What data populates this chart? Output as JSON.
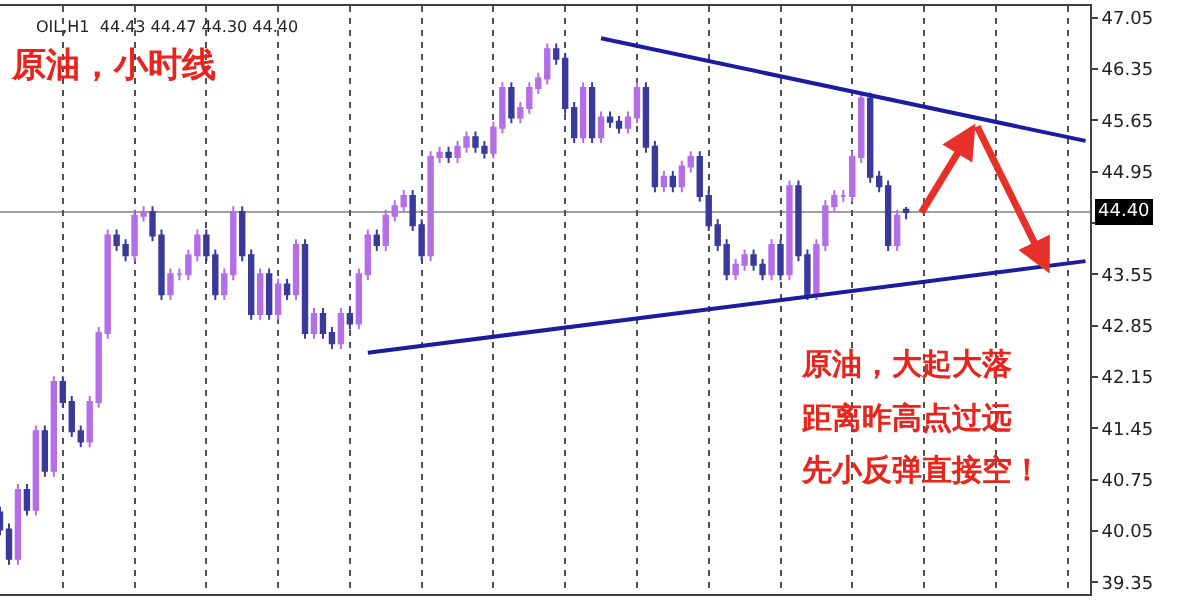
{
  "chart_data": {
    "type": "candlestick",
    "title": "原油，小时线",
    "annotations": [
      "OIL,H1  44.43 44.47 44.30 44.40",
      "原油，大起大落",
      "距离昨高点过远",
      "先小反弹直接空！"
    ],
    "categories": [
      null,
      null,
      null,
      null,
      null,
      null,
      null,
      null,
      null,
      null,
      null,
      null,
      null,
      null,
      null,
      null,
      null,
      null,
      null,
      null,
      null,
      null,
      null,
      null,
      null,
      null,
      null,
      null,
      null,
      null,
      null,
      null,
      null,
      null,
      null,
      null,
      null,
      null,
      null,
      null,
      null,
      null,
      null,
      null,
      null,
      null,
      null,
      null,
      null,
      null,
      null,
      null,
      null,
      null,
      null,
      null,
      null,
      null,
      null,
      null,
      null,
      null,
      null,
      null,
      null,
      null,
      null,
      null,
      null,
      null,
      null,
      null,
      null,
      null,
      null,
      null,
      null,
      null,
      null,
      null,
      null,
      null,
      null,
      null,
      null,
      null,
      null,
      null,
      null,
      null,
      null,
      null,
      null,
      null,
      null,
      null,
      null,
      null,
      null,
      null,
      null,
      null,
      null,
      null,
      null,
      null,
      null,
      null,
      null,
      null,
      null,
      null,
      null,
      null,
      null,
      null,
      null,
      null,
      null,
      null,
      null,
      null
    ],
    "series": [
      {
        "ohlc": [
          [
            40.3,
            40.38,
            39.99,
            40.07
          ],
          [
            40.07,
            40.15,
            39.59,
            39.67
          ],
          [
            39.67,
            40.69,
            39.59,
            40.61
          ],
          [
            40.61,
            40.69,
            40.26,
            40.34
          ],
          [
            40.34,
            41.49,
            40.26,
            41.41
          ],
          [
            41.41,
            41.49,
            40.79,
            40.87
          ],
          [
            40.87,
            42.16,
            40.79,
            42.08
          ],
          [
            42.08,
            42.16,
            41.73,
            41.81
          ],
          [
            41.81,
            41.89,
            41.33,
            41.41
          ],
          [
            41.41,
            41.49,
            41.19,
            41.27
          ],
          [
            41.27,
            41.89,
            41.19,
            41.81
          ],
          [
            41.81,
            42.83,
            41.73,
            42.75
          ],
          [
            42.75,
            44.16,
            42.67,
            44.08
          ],
          [
            44.08,
            44.16,
            43.87,
            43.95
          ],
          [
            43.95,
            44.03,
            43.73,
            43.81
          ],
          [
            43.81,
            44.43,
            43.73,
            44.35
          ],
          [
            44.35,
            44.48,
            44.27,
            44.4
          ],
          [
            44.4,
            44.48,
            44.0,
            44.08
          ],
          [
            44.08,
            44.16,
            43.2,
            43.28
          ],
          [
            43.28,
            43.63,
            43.2,
            43.55
          ],
          [
            43.55,
            43.63,
            43.47,
            43.55
          ],
          [
            43.55,
            43.89,
            43.47,
            43.81
          ],
          [
            43.81,
            44.16,
            43.73,
            44.08
          ],
          [
            44.08,
            44.16,
            43.73,
            43.81
          ],
          [
            43.81,
            43.89,
            43.2,
            43.28
          ],
          [
            43.28,
            43.63,
            43.2,
            43.55
          ],
          [
            43.55,
            44.48,
            43.47,
            44.4
          ],
          [
            44.4,
            44.48,
            43.73,
            43.81
          ],
          [
            43.81,
            43.89,
            42.93,
            43.01
          ],
          [
            43.01,
            43.63,
            42.93,
            43.55
          ],
          [
            43.55,
            43.63,
            42.93,
            43.01
          ],
          [
            43.01,
            43.49,
            42.93,
            43.41
          ],
          [
            43.41,
            43.49,
            43.2,
            43.28
          ],
          [
            43.28,
            44.03,
            43.2,
            43.95
          ],
          [
            43.95,
            44.03,
            42.67,
            42.75
          ],
          [
            42.75,
            43.09,
            42.67,
            43.01
          ],
          [
            43.01,
            43.09,
            42.67,
            42.75
          ],
          [
            42.75,
            42.83,
            42.53,
            42.61
          ],
          [
            42.61,
            43.09,
            42.53,
            43.01
          ],
          [
            43.01,
            43.09,
            42.8,
            42.88
          ],
          [
            42.88,
            43.63,
            42.8,
            43.55
          ],
          [
            43.55,
            44.16,
            43.47,
            44.08
          ],
          [
            44.08,
            44.16,
            43.87,
            43.95
          ],
          [
            43.95,
            44.43,
            43.87,
            44.35
          ],
          [
            44.35,
            44.56,
            44.27,
            44.48
          ],
          [
            44.48,
            44.7,
            44.4,
            44.62
          ],
          [
            44.62,
            44.7,
            44.14,
            44.22
          ],
          [
            44.22,
            44.3,
            43.73,
            43.81
          ],
          [
            43.81,
            45.23,
            43.73,
            45.15
          ],
          [
            45.15,
            45.29,
            45.07,
            45.21
          ],
          [
            45.21,
            45.29,
            45.07,
            45.15
          ],
          [
            45.15,
            45.37,
            45.07,
            45.29
          ],
          [
            45.29,
            45.5,
            45.21,
            45.42
          ],
          [
            45.42,
            45.5,
            45.21,
            45.29
          ],
          [
            45.29,
            45.37,
            45.13,
            45.21
          ],
          [
            45.21,
            45.63,
            45.13,
            45.55
          ],
          [
            45.55,
            46.17,
            45.47,
            46.09
          ],
          [
            46.09,
            46.17,
            45.61,
            45.69
          ],
          [
            45.69,
            45.9,
            45.61,
            45.82
          ],
          [
            45.82,
            46.17,
            45.74,
            46.09
          ],
          [
            46.09,
            46.3,
            46.01,
            46.22
          ],
          [
            46.22,
            46.7,
            46.14,
            46.62
          ],
          [
            46.62,
            46.7,
            46.41,
            46.49
          ],
          [
            46.49,
            46.57,
            45.74,
            45.82
          ],
          [
            45.82,
            45.9,
            45.34,
            45.42
          ],
          [
            45.42,
            46.17,
            45.34,
            46.09
          ],
          [
            46.09,
            46.17,
            45.34,
            45.42
          ],
          [
            45.42,
            45.77,
            45.34,
            45.69
          ],
          [
            45.69,
            45.77,
            45.55,
            45.63
          ],
          [
            45.63,
            45.71,
            45.47,
            45.55
          ],
          [
            45.55,
            45.77,
            45.47,
            45.69
          ],
          [
            45.69,
            46.17,
            45.61,
            46.09
          ],
          [
            46.09,
            46.17,
            45.21,
            45.29
          ],
          [
            45.29,
            45.37,
            44.67,
            44.75
          ],
          [
            44.75,
            44.96,
            44.67,
            44.88
          ],
          [
            44.88,
            44.96,
            44.67,
            44.75
          ],
          [
            44.75,
            45.1,
            44.67,
            45.02
          ],
          [
            45.02,
            45.23,
            44.94,
            45.15
          ],
          [
            45.15,
            45.23,
            44.54,
            44.62
          ],
          [
            44.62,
            44.7,
            44.14,
            44.22
          ],
          [
            44.22,
            44.3,
            43.87,
            43.95
          ],
          [
            43.95,
            44.03,
            43.47,
            43.55
          ],
          [
            43.55,
            43.76,
            43.47,
            43.68
          ],
          [
            43.68,
            43.89,
            43.6,
            43.81
          ],
          [
            43.81,
            43.89,
            43.6,
            43.68
          ],
          [
            43.68,
            43.76,
            43.47,
            43.55
          ],
          [
            43.55,
            44.03,
            43.47,
            43.95
          ],
          [
            43.95,
            44.03,
            43.47,
            43.55
          ],
          [
            43.55,
            44.83,
            43.47,
            44.75
          ],
          [
            44.75,
            44.83,
            43.73,
            43.81
          ],
          [
            43.81,
            43.89,
            43.2,
            43.28
          ],
          [
            43.28,
            44.03,
            43.2,
            43.95
          ],
          [
            43.95,
            44.56,
            43.87,
            44.48
          ],
          [
            44.48,
            44.7,
            44.4,
            44.62
          ],
          [
            44.62,
            44.7,
            44.54,
            44.62
          ],
          [
            44.62,
            45.23,
            44.54,
            45.15
          ],
          [
            45.15,
            46.03,
            45.07,
            45.95
          ],
          [
            45.95,
            46.03,
            44.8,
            44.88
          ],
          [
            44.88,
            44.96,
            44.67,
            44.75
          ],
          [
            44.75,
            44.83,
            43.87,
            43.95
          ],
          [
            43.95,
            44.43,
            43.87,
            44.35
          ],
          [
            44.43,
            44.47,
            44.3,
            44.4
          ],
          null,
          null,
          null,
          null,
          null,
          null,
          null,
          null,
          null,
          null,
          null,
          null,
          null,
          null,
          null,
          null,
          null,
          null,
          null,
          null
        ],
        "colors": [
          "#3a3a9a",
          "#3a3a9a",
          "#b46ee6",
          "#3a3a9a",
          "#b46ee6",
          "#3a3a9a",
          "#b46ee6",
          "#3a3a9a",
          "#3a3a9a",
          "#3a3a9a",
          "#b46ee6",
          "#b46ee6",
          "#b46ee6",
          "#3a3a9a",
          "#3a3a9a",
          "#b46ee6",
          "#b46ee6",
          "#3a3a9a",
          "#3a3a9a",
          "#b46ee6",
          "#b46ee6",
          "#b46ee6",
          "#b46ee6",
          "#3a3a9a",
          "#3a3a9a",
          "#b46ee6",
          "#b46ee6",
          "#3a3a9a",
          "#3a3a9a",
          "#b46ee6",
          "#3a3a9a",
          "#b46ee6",
          "#3a3a9a",
          "#b46ee6",
          "#3a3a9a",
          "#b46ee6",
          "#3a3a9a",
          "#3a3a9a",
          "#b46ee6",
          "#3a3a9a",
          "#b46ee6",
          "#b46ee6",
          "#3a3a9a",
          "#b46ee6",
          "#b46ee6",
          "#b46ee6",
          "#3a3a9a",
          "#3a3a9a",
          "#b46ee6",
          "#b46ee6",
          "#3a3a9a",
          "#b46ee6",
          "#b46ee6",
          "#3a3a9a",
          "#3a3a9a",
          "#b46ee6",
          "#b46ee6",
          "#3a3a9a",
          "#b46ee6",
          "#b46ee6",
          "#b46ee6",
          "#b46ee6",
          "#3a3a9a",
          "#3a3a9a",
          "#3a3a9a",
          "#b46ee6",
          "#3a3a9a",
          "#b46ee6",
          "#3a3a9a",
          "#3a3a9a",
          "#b46ee6",
          "#b46ee6",
          "#3a3a9a",
          "#3a3a9a",
          "#b46ee6",
          "#3a3a9a",
          "#b46ee6",
          "#b46ee6",
          "#3a3a9a",
          "#3a3a9a",
          "#3a3a9a",
          "#3a3a9a",
          "#b46ee6",
          "#b46ee6",
          "#3a3a9a",
          "#3a3a9a",
          "#b46ee6",
          "#3a3a9a",
          "#b46ee6",
          "#3a3a9a",
          "#3a3a9a",
          "#b46ee6",
          "#b46ee6",
          "#b46ee6",
          "#b46ee6",
          "#b46ee6",
          "#b46ee6",
          "#3a3a9a",
          "#3a3a9a",
          "#3a3a9a",
          "#b46ee6",
          "#3a3a9a",
          null,
          null,
          null,
          null,
          null,
          null,
          null,
          null,
          null,
          null,
          null,
          null,
          null,
          null,
          null,
          null,
          null,
          null,
          null,
          null
        ]
      },
      {
        "type": "line",
        "color": "#1c1ca0",
        "values": [
          null,
          null,
          null,
          null,
          null,
          null,
          null,
          null,
          null,
          null,
          null,
          null,
          null,
          null,
          null,
          null,
          null,
          null,
          null,
          null,
          null,
          null,
          null,
          null,
          null,
          null,
          null,
          null,
          null,
          null,
          null,
          null,
          null,
          null,
          null,
          null,
          null,
          null,
          null,
          null,
          null,
          null,
          null,
          null,
          null,
          null,
          null,
          null,
          null,
          null,
          null,
          null,
          null,
          null,
          null,
          null,
          null,
          null,
          null,
          null,
          null,
          null,
          null,
          null,
          null,
          null,
          null,
          46.77,
          null,
          null,
          null,
          null,
          null,
          null,
          null,
          null,
          null,
          null,
          null,
          null,
          null,
          null,
          null,
          null,
          null,
          null,
          null,
          null,
          null,
          null,
          null,
          null,
          null,
          null,
          null,
          null,
          null,
          null,
          null,
          null,
          null,
          null,
          null,
          null,
          null,
          null,
          null,
          null,
          null,
          null,
          null,
          null,
          null,
          null,
          null,
          null,
          null,
          null,
          null,
          null,
          null,
          45.37
        ]
      },
      {
        "type": "line",
        "color": "#1c1ca0",
        "values": [
          null,
          null,
          null,
          null,
          null,
          null,
          null,
          null,
          null,
          null,
          null,
          null,
          null,
          null,
          null,
          null,
          null,
          null,
          null,
          null,
          null,
          null,
          null,
          null,
          null,
          null,
          null,
          null,
          null,
          null,
          null,
          null,
          null,
          null,
          null,
          null,
          null,
          null,
          null,
          null,
          null,
          42.48,
          null,
          null,
          null,
          null,
          null,
          null,
          null,
          null,
          null,
          null,
          null,
          null,
          null,
          null,
          null,
          null,
          null,
          null,
          null,
          null,
          null,
          null,
          null,
          null,
          null,
          null,
          null,
          null,
          null,
          null,
          null,
          null,
          null,
          null,
          null,
          null,
          null,
          null,
          null,
          null,
          null,
          null,
          null,
          null,
          null,
          null,
          null,
          null,
          null,
          null,
          null,
          null,
          null,
          null,
          null,
          null,
          null,
          null,
          null,
          null,
          null,
          null,
          null,
          null,
          null,
          null,
          null,
          null,
          null,
          null,
          null,
          null,
          null,
          null,
          null,
          null,
          null,
          null,
          null,
          43.73
        ]
      }
    ],
    "ref_lines": [
      {
        "axis": "y",
        "value": 44.4,
        "label": "44.40",
        "color": "#a0a0a0"
      }
    ],
    "ylim": [
      39.19,
      47.21
    ],
    "yticks": [
      39.35,
      40.05,
      40.75,
      41.45,
      42.15,
      42.85,
      43.55,
      {
        "value": 44.25,
        "label": null
      },
      44.95,
      45.65,
      46.35,
      47.05
    ],
    "grid": "x",
    "tick_labels": "y"
  }
}
